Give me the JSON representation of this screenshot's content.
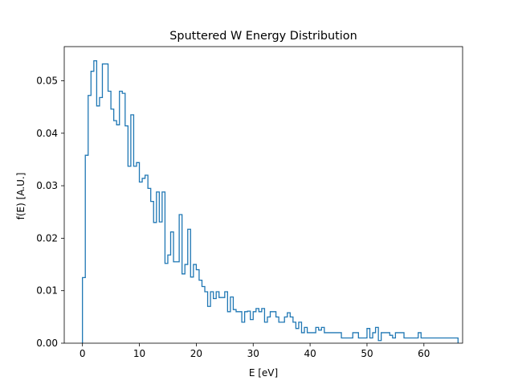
{
  "chart_data": {
    "type": "histogram",
    "title": "Sputtered W Energy Distribution",
    "xlabel": "E [eV]",
    "ylabel": "f(E) [A.U.]",
    "xlim": [
      -3.2,
      66.8
    ],
    "ylim": [
      0,
      0.0565
    ],
    "grid": false,
    "legend": "none",
    "line_color": "#1f77b4",
    "x_ticks": [
      0,
      10,
      20,
      30,
      40,
      50,
      60
    ],
    "x_tick_labels": [
      "0",
      "10",
      "20",
      "30",
      "40",
      "50",
      "60"
    ],
    "y_ticks": [
      0.0,
      0.01,
      0.02,
      0.03,
      0.04,
      0.05
    ],
    "y_tick_labels": [
      "0.00",
      "0.01",
      "0.02",
      "0.03",
      "0.04",
      "0.05"
    ],
    "bin_start": 0.0,
    "bin_width": 0.5,
    "values": [
      0.0125,
      0.0358,
      0.0472,
      0.0518,
      0.0538,
      0.0452,
      0.0468,
      0.0532,
      0.0532,
      0.048,
      0.0446,
      0.0424,
      0.0416,
      0.048,
      0.0476,
      0.0414,
      0.0337,
      0.0435,
      0.0337,
      0.0344,
      0.0307,
      0.0314,
      0.032,
      0.0295,
      0.027,
      0.023,
      0.0288,
      0.0231,
      0.0288,
      0.0152,
      0.0168,
      0.0212,
      0.0155,
      0.0155,
      0.0245,
      0.0132,
      0.015,
      0.0217,
      0.0126,
      0.015,
      0.014,
      0.012,
      0.0108,
      0.0098,
      0.007,
      0.0098,
      0.0085,
      0.0098,
      0.0087,
      0.0087,
      0.0098,
      0.006,
      0.0088,
      0.0064,
      0.006,
      0.006,
      0.004,
      0.006,
      0.0061,
      0.0045,
      0.006,
      0.0066,
      0.006,
      0.0066,
      0.004,
      0.005,
      0.006,
      0.006,
      0.005,
      0.004,
      0.004,
      0.005,
      0.0058,
      0.005,
      0.004,
      0.0028,
      0.004,
      0.002,
      0.003,
      0.002,
      0.002,
      0.002,
      0.003,
      0.0025,
      0.003,
      0.002,
      0.002,
      0.002,
      0.002,
      0.002,
      0.002,
      0.001,
      0.001,
      0.001,
      0.001,
      0.002,
      0.002,
      0.001,
      0.001,
      0.001,
      0.0028,
      0.001,
      0.002,
      0.003,
      0.0005,
      0.002,
      0.002,
      0.002,
      0.0015,
      0.001,
      0.002,
      0.002,
      0.002,
      0.001,
      0.001,
      0.001,
      0.001,
      0.001,
      0.002,
      0.001,
      0.001,
      0.001,
      0.001,
      0.001,
      0.001,
      0.001,
      0.001,
      0.001,
      0.001,
      0.001,
      0.001,
      0.001
    ]
  }
}
